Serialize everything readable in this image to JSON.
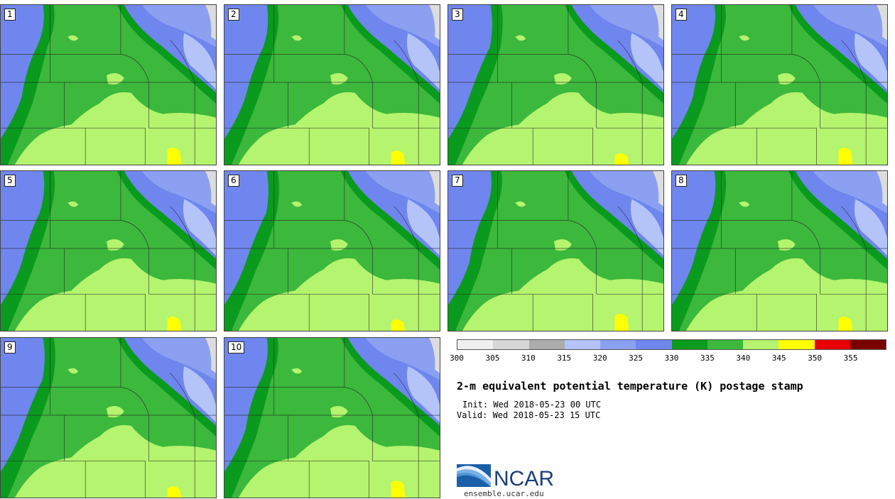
{
  "panels": [
    {
      "label": "1"
    },
    {
      "label": "2"
    },
    {
      "label": "3"
    },
    {
      "label": "4"
    },
    {
      "label": "5"
    },
    {
      "label": "6"
    },
    {
      "label": "7"
    },
    {
      "label": "8"
    },
    {
      "label": "9"
    },
    {
      "label": "10"
    }
  ],
  "colorbar": {
    "colors": [
      "#f0f0f0",
      "#d6d6d6",
      "#acacac",
      "#b4c4f8",
      "#8ca0f2",
      "#6f86ee",
      "#0a9a1e",
      "#3cb83c",
      "#b4f46e",
      "#ffff00",
      "#e80000",
      "#7a0000"
    ],
    "ticks": [
      "300",
      "305",
      "310",
      "315",
      "320",
      "325",
      "330",
      "335",
      "340",
      "345",
      "350",
      "355"
    ]
  },
  "map_colors": {
    "cool": "#6f86ee",
    "cooler": "#8ca0f2",
    "coldest": "#b4c4f8",
    "dark_green": "#0a9a1e",
    "green": "#3cb83c",
    "light_green": "#b4f46e",
    "yellow": "#ffff00"
  },
  "title": "2-m equivalent potential temperature (K) postage stamp",
  "init": "Init: Wed 2018-05-23 00 UTC",
  "valid": "Valid: Wed 2018-05-23 15 UTC",
  "logo_text": "NCAR",
  "site": "ensemble.ucar.edu"
}
